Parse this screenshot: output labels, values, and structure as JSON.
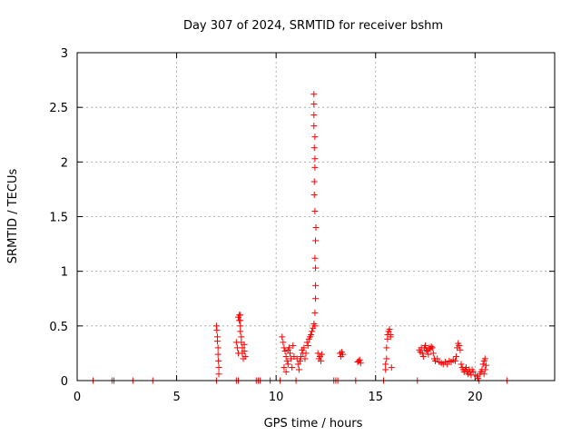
{
  "chart_data": {
    "type": "scatter",
    "title": "Day 307 of 2024, SRMTID for receiver bshm",
    "xlabel": "GPS time / hours",
    "ylabel": "SRMTID / TECUs",
    "xlim": [
      0,
      24
    ],
    "ylim": [
      0,
      3
    ],
    "xticks": [
      0,
      5,
      10,
      15,
      20
    ],
    "yticks": [
      0,
      0.5,
      1,
      1.5,
      2,
      2.5,
      3
    ],
    "xtick_labels": [
      "0",
      "5",
      "10",
      "15",
      "20"
    ],
    "ytick_labels": [
      "0",
      "0.5",
      "1",
      "1.5",
      "2",
      "2.5",
      "3"
    ],
    "grid": true,
    "marker": "+",
    "color": "#ff0000",
    "series": [
      {
        "name": "SRMTID",
        "points": [
          [
            0.8,
            0
          ],
          [
            1.75,
            0
          ],
          [
            1.85,
            0
          ],
          [
            2.8,
            0
          ],
          [
            3.8,
            0
          ],
          [
            7.0,
            0.5
          ],
          [
            7.02,
            0.46
          ],
          [
            7.05,
            0.4
          ],
          [
            7.05,
            0.36
          ],
          [
            7.08,
            0.3
          ],
          [
            7.08,
            0.24
          ],
          [
            7.1,
            0.18
          ],
          [
            7.12,
            0.12
          ],
          [
            7.12,
            0.06
          ],
          [
            7.0,
            0
          ],
          [
            8.0,
            0.35
          ],
          [
            8.05,
            0.3
          ],
          [
            8.1,
            0.25
          ],
          [
            8.15,
            0.6
          ],
          [
            8.15,
            0.55
          ],
          [
            8.2,
            0.5
          ],
          [
            8.2,
            0.45
          ],
          [
            8.25,
            0.4
          ],
          [
            8.25,
            0.35
          ],
          [
            8.3,
            0.3
          ],
          [
            8.3,
            0.25
          ],
          [
            8.35,
            0.2
          ],
          [
            8.4,
            0.33
          ],
          [
            8.4,
            0.27
          ],
          [
            8.45,
            0.22
          ],
          [
            8.2,
            0.6
          ],
          [
            8.1,
            0.58
          ],
          [
            8.2,
            0.55
          ],
          [
            8.0,
            0
          ],
          [
            8.1,
            0
          ],
          [
            9.0,
            0
          ],
          [
            9.1,
            0
          ],
          [
            9.2,
            0
          ],
          [
            9.7,
            0
          ],
          [
            10.2,
            0
          ],
          [
            10.3,
            0.4
          ],
          [
            10.35,
            0.35
          ],
          [
            10.4,
            0.3
          ],
          [
            10.45,
            0.27
          ],
          [
            10.5,
            0.22
          ],
          [
            10.55,
            0.18
          ],
          [
            10.6,
            0.15
          ],
          [
            10.65,
            0.3
          ],
          [
            10.7,
            0.25
          ],
          [
            10.75,
            0.2
          ],
          [
            10.8,
            0.12
          ],
          [
            10.85,
            0.32
          ],
          [
            10.5,
            0.08
          ],
          [
            10.4,
            0.12
          ],
          [
            10.6,
            0.28
          ],
          [
            10.9,
            0.22
          ],
          [
            11.0,
            0
          ],
          [
            11.05,
            0.2
          ],
          [
            11.1,
            0.15
          ],
          [
            11.15,
            0.1
          ],
          [
            11.2,
            0.18
          ],
          [
            11.25,
            0.22
          ],
          [
            11.3,
            0.28
          ],
          [
            11.35,
            0.25
          ],
          [
            11.4,
            0.3
          ],
          [
            11.45,
            0.2
          ],
          [
            11.5,
            0.25
          ],
          [
            11.55,
            0.35
          ],
          [
            11.6,
            0.32
          ],
          [
            11.65,
            0.38
          ],
          [
            11.7,
            0.4
          ],
          [
            11.75,
            0.42
          ],
          [
            11.8,
            0.45
          ],
          [
            11.85,
            0.48
          ],
          [
            11.9,
            0.52
          ],
          [
            11.95,
            0.5
          ],
          [
            11.95,
            0.62
          ],
          [
            11.98,
            0.75
          ],
          [
            11.98,
            0.87
          ],
          [
            11.98,
            1.03
          ],
          [
            11.95,
            1.12
          ],
          [
            11.98,
            1.28
          ],
          [
            12.0,
            1.4
          ],
          [
            11.95,
            1.55
          ],
          [
            11.92,
            1.7
          ],
          [
            11.92,
            1.82
          ],
          [
            11.95,
            1.95
          ],
          [
            11.95,
            2.03
          ],
          [
            11.92,
            2.13
          ],
          [
            11.95,
            2.23
          ],
          [
            11.9,
            2.33
          ],
          [
            11.9,
            2.43
          ],
          [
            11.9,
            2.53
          ],
          [
            11.9,
            2.62
          ],
          [
            12.1,
            0.25
          ],
          [
            12.15,
            0.2
          ],
          [
            12.2,
            0.22
          ],
          [
            12.25,
            0.18
          ],
          [
            12.3,
            0.24
          ],
          [
            12.9,
            0
          ],
          [
            13.0,
            0
          ],
          [
            13.1,
            0
          ],
          [
            13.2,
            0.25
          ],
          [
            13.25,
            0.22
          ],
          [
            13.3,
            0.26
          ],
          [
            13.35,
            0.24
          ],
          [
            14.0,
            0
          ],
          [
            14.1,
            0.17
          ],
          [
            14.15,
            0.18
          ],
          [
            14.2,
            0.19
          ],
          [
            14.25,
            0.16
          ],
          [
            15.4,
            0
          ],
          [
            15.5,
            0.1
          ],
          [
            15.5,
            0.15
          ],
          [
            15.55,
            0.2
          ],
          [
            15.55,
            0.3
          ],
          [
            15.6,
            0.38
          ],
          [
            15.6,
            0.42
          ],
          [
            15.65,
            0.45
          ],
          [
            15.7,
            0.47
          ],
          [
            15.75,
            0.42
          ],
          [
            15.75,
            0.4
          ],
          [
            15.8,
            0.12
          ],
          [
            17.1,
            0
          ],
          [
            17.2,
            0.28
          ],
          [
            17.25,
            0.26
          ],
          [
            17.3,
            0.3
          ],
          [
            17.35,
            0.25
          ],
          [
            17.4,
            0.22
          ],
          [
            17.45,
            0.3
          ],
          [
            17.5,
            0.32
          ],
          [
            17.55,
            0.28
          ],
          [
            17.6,
            0.27
          ],
          [
            17.65,
            0.24
          ],
          [
            17.7,
            0.3
          ],
          [
            17.75,
            0.29
          ],
          [
            17.8,
            0.31
          ],
          [
            17.85,
            0.3
          ],
          [
            17.9,
            0.25
          ],
          [
            17.95,
            0.2
          ],
          [
            18.0,
            0.18
          ],
          [
            18.1,
            0.2
          ],
          [
            18.2,
            0.17
          ],
          [
            18.3,
            0.16
          ],
          [
            18.4,
            0.15
          ],
          [
            18.5,
            0.17
          ],
          [
            18.6,
            0.15
          ],
          [
            18.7,
            0.18
          ],
          [
            18.8,
            0.17
          ],
          [
            18.9,
            0.19
          ],
          [
            19.0,
            0.18
          ],
          [
            19.05,
            0.22
          ],
          [
            19.1,
            0.3
          ],
          [
            19.15,
            0.34
          ],
          [
            19.2,
            0.32
          ],
          [
            19.25,
            0.28
          ],
          [
            19.3,
            0.15
          ],
          [
            19.35,
            0.12
          ],
          [
            19.4,
            0.1
          ],
          [
            19.45,
            0.08
          ],
          [
            19.5,
            0.1
          ],
          [
            19.55,
            0.12
          ],
          [
            19.6,
            0.08
          ],
          [
            19.65,
            0.06
          ],
          [
            19.7,
            0.1
          ],
          [
            19.75,
            0.08
          ],
          [
            19.8,
            0.05
          ],
          [
            19.85,
            0.1
          ],
          [
            19.9,
            0.08
          ],
          [
            20.0,
            0.05
          ],
          [
            20.1,
            0.04
          ],
          [
            20.15,
            0.02
          ],
          [
            20.2,
            0
          ],
          [
            20.25,
            0.06
          ],
          [
            20.3,
            0.08
          ],
          [
            20.35,
            0.1
          ],
          [
            20.4,
            0.15
          ],
          [
            20.45,
            0.18
          ],
          [
            20.5,
            0.2
          ],
          [
            20.55,
            0.14
          ],
          [
            20.5,
            0.1
          ],
          [
            20.45,
            0.06
          ],
          [
            21.6,
            0
          ]
        ]
      }
    ]
  }
}
